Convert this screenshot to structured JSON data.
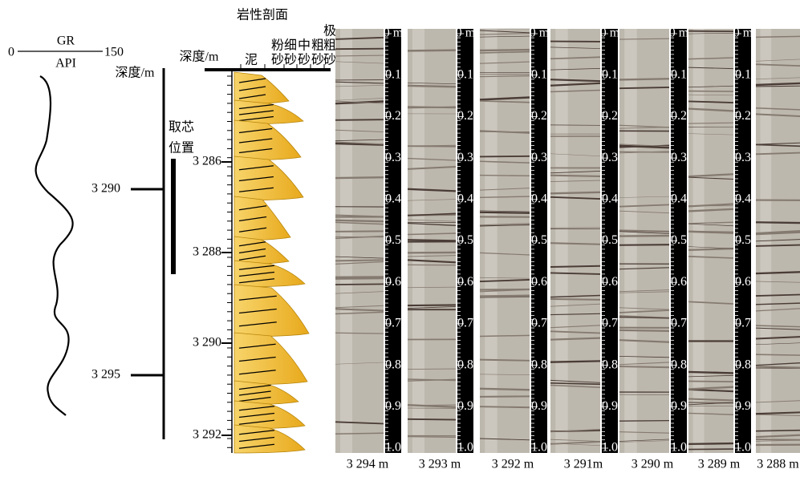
{
  "gr_track": {
    "min_label": "0",
    "curve_name": "GR",
    "max_label": "150",
    "unit": "API"
  },
  "depth_track": {
    "axis_title": "深度/m",
    "ticks": [
      "3 290",
      "3 295"
    ]
  },
  "coring": {
    "label_lines": [
      "取芯",
      "位置"
    ]
  },
  "lithology": {
    "title": "岩性剖面",
    "axis_title": "深度/m",
    "grain_sizes": [
      [
        "泥"
      ],
      [
        "粉",
        "砂"
      ],
      [
        "细",
        "砂"
      ],
      [
        "中",
        "砂"
      ],
      [
        "粗",
        "砂"
      ],
      [
        "极",
        "粗",
        "砂"
      ]
    ],
    "depth_ticks": [
      "3 286",
      "3 288",
      "3 290",
      "3 292"
    ]
  },
  "cores": {
    "scale_labels": [
      "0 m",
      "0.1",
      "0.2",
      "0.3",
      "0.4",
      "0.5",
      "0.6",
      "0.7",
      "0.8",
      "0.9",
      "1.0"
    ],
    "labels": [
      "3 294 m",
      "3 293 m",
      "3 292 m",
      "3 291m",
      "3 290 m",
      "3 289 m",
      "3 288 m"
    ]
  }
}
